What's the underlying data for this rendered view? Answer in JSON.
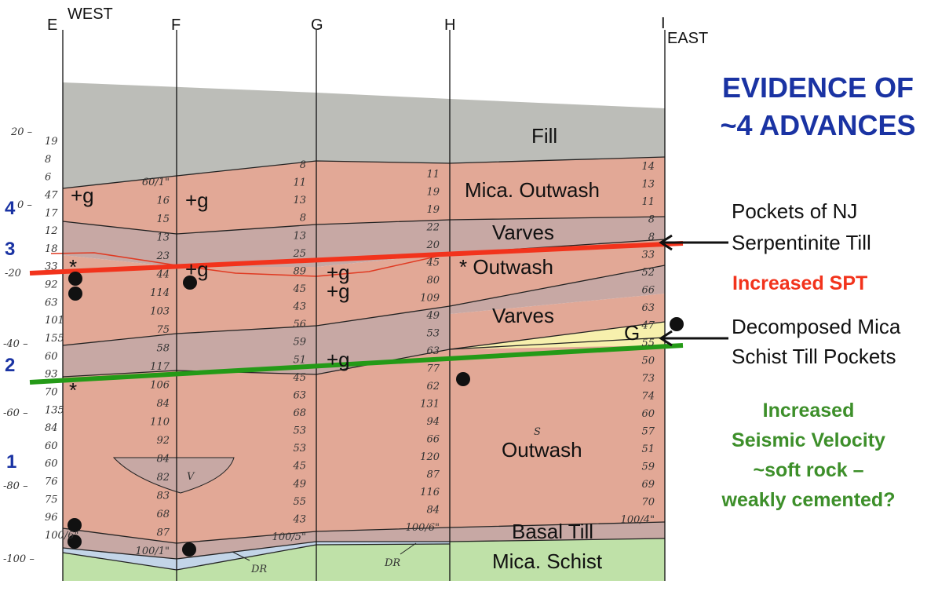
{
  "columns": {
    "E": "E",
    "F": "F",
    "G": "G",
    "H": "H",
    "I": "I",
    "west": "WEST",
    "east": "EAST"
  },
  "title": {
    "line1": "EVIDENCE OF",
    "line2": "~4 ADVANCES",
    "color": "#1a33a3"
  },
  "layers": {
    "fill": "Fill",
    "mica_outwash": "Mica. Outwash",
    "varves_upper": "Varves",
    "outwash_upper": "* Outwash",
    "varves_lower": "Varves",
    "g_lens": "G",
    "outwash_lower": "Outwash",
    "basal_till": "Basal Till",
    "mica_schist": "Mica. Schist",
    "v_lens": "V",
    "dr_left": "DR",
    "dr_right": "DR"
  },
  "colors": {
    "fill": "#bcbdb8",
    "outwash": "#e2a896",
    "varves": "#c7a8a4",
    "till_pocket": "#f7f0ad",
    "bedrock": "#bfe1a8",
    "dr": "#c3d5e8",
    "spt_line": "#f2331c",
    "seismic_line": "#249a17",
    "advance_number": "#1a33a3"
  },
  "advances": {
    "a4": "4",
    "a3": "3",
    "a2": "2",
    "a1": "1"
  },
  "elevation_ticks": {
    "t20": "20 –",
    "t0": "0 –",
    "tm20": "-20",
    "tm40": "-40 –",
    "tm60": "-60 –",
    "tm80": "-80 –",
    "tm100": "-100 –"
  },
  "annotations": {
    "pockets": [
      "Pockets of NJ",
      "Serpentinite Till"
    ],
    "spt": "Increased SPT",
    "decomposed": [
      "Decomposed Mica",
      "Schist Till Pockets"
    ],
    "seismic": [
      "Increased",
      "Seismic Velocity",
      "~soft rock –",
      "weakly cemented?"
    ]
  },
  "markers": {
    "plus_g": "+g",
    "asterisk": "*",
    "s": "S"
  },
  "blow_counts": {
    "E": [
      "19",
      "8",
      "6",
      "47",
      "17",
      "12",
      "18",
      "33",
      "92",
      "63",
      "101",
      "155",
      "60",
      "93",
      "70",
      "135",
      "84",
      "60",
      "60",
      "76",
      "75",
      "96",
      "100/6\""
    ],
    "F": [
      "60/1\"",
      "16",
      "15",
      "13",
      "23",
      "44",
      "114",
      "103",
      "75",
      "58",
      "117",
      "106",
      "84",
      "110",
      "92",
      "84",
      "82",
      "83",
      "68",
      "87",
      "100/1\""
    ],
    "G": [
      "8",
      "11",
      "13",
      "8",
      "13",
      "25",
      "89",
      "45",
      "43",
      "56",
      "59",
      "51",
      "45",
      "63",
      "68",
      "53",
      "53",
      "45",
      "49",
      "55",
      "43",
      "100/5\""
    ],
    "H": [
      "11",
      "19",
      "19",
      "22",
      "20",
      "45",
      "80",
      "109",
      "49",
      "53",
      "63",
      "77",
      "62",
      "131",
      "94",
      "66",
      "120",
      "87",
      "116",
      "84",
      "100/6\""
    ],
    "I": [
      "14",
      "13",
      "11",
      "8",
      "8",
      "33",
      "52",
      "66",
      "63",
      "47",
      "55",
      "50",
      "73",
      "74",
      "60",
      "57",
      "51",
      "59",
      "69",
      "70",
      "100/4\""
    ]
  }
}
